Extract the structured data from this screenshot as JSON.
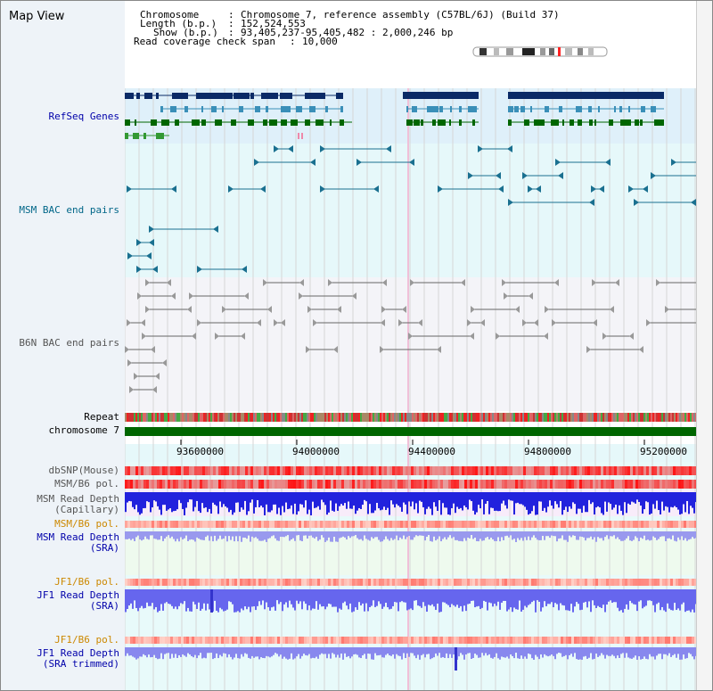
{
  "app": {
    "title": "Map View"
  },
  "header": {
    "chromosome_key": "Chromosome",
    "chromosome_val": "Chromosome 7, reference assembly (C57BL/6J) (Build 37)",
    "length_key": "Length (b.p.)",
    "length_val": "152,524,553",
    "show_key": "Show (b.p.)",
    "show_val": "93,405,237-95,405,482 : 2,000,246 bp",
    "coverage_key": "Read coverage check span",
    "coverage_val": "10,000"
  },
  "tracks": {
    "refseq": "RefSeq Genes",
    "msm_bac": "MSM BAC end pairs",
    "b6n_bac": "B6N BAC end pairs",
    "repeat": "Repeat",
    "chromosome": "chromosome 7",
    "dbsnp": "dbSNP(Mouse)",
    "msm_b6_pol": "MSM/B6 pol.",
    "msm_read_depth_cap": "MSM Read Depth\n(Capillary)",
    "msm_b6_pol2": "MSM/B6 pol.",
    "msm_read_depth_sra": "MSM Read Depth\n(SRA)",
    "jf1_b6_pol": "JF1/B6 pol.",
    "jf1_read_depth_sra": "JF1 Read Depth\n(SRA)",
    "jf1_b6_pol2": "JF1/B6 pol.",
    "jf1_read_depth_trim": "JF1 Read Depth\n(SRA trimmed)"
  },
  "axis": {
    "ticks": [
      "93600000",
      "94000000",
      "94400000",
      "94800000",
      "95200000"
    ]
  },
  "colors": {
    "refseq_dark": "#0a2a66",
    "refseq_mid": "#3a8fb8",
    "refseq_green": "#006600",
    "msm_bac": "#1a7090",
    "b6n_bac": "#666666",
    "label_blue": "#0000aa",
    "label_orange": "#cc8800",
    "label_teal": "#006688"
  }
}
